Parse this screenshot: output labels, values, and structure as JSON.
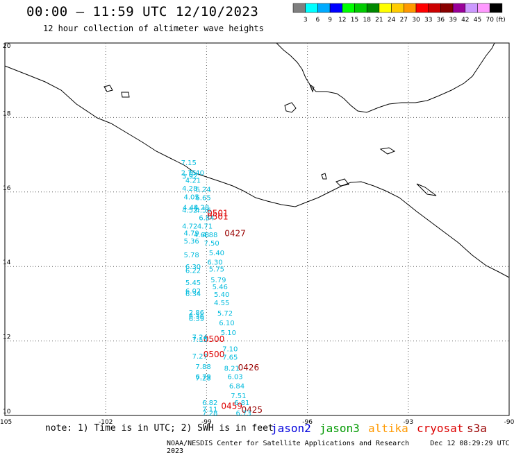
{
  "header": {
    "title": "00:00 – 11:59 UTC 12/10/2023",
    "subtitle": "12 hour collection of altimeter wave heights"
  },
  "colorbar": {
    "labels": [
      "3",
      "6",
      "9",
      "12",
      "15",
      "18",
      "21",
      "24",
      "27",
      "30",
      "33",
      "36",
      "39",
      "42",
      "45",
      "70"
    ],
    "unit": "(ft)",
    "colors": [
      "#7f7f7f",
      "#00ffff",
      "#00aaff",
      "#0000ff",
      "#00ff00",
      "#00cc00",
      "#008800",
      "#ffff00",
      "#ffcc00",
      "#ff9900",
      "#ff0000",
      "#cc0000",
      "#880000",
      "#990099",
      "#cc99ff",
      "#ff99ff",
      "#000000"
    ]
  },
  "footer": {
    "note": "note: 1) Time is in UTC; 2) SWH is in feet",
    "credit": "NOAA/NESDIS Center for Satellite Applications and Research",
    "timestamp": "Dec 12 08:29:29 UTC 2023"
  },
  "legend": [
    {
      "name": "jason2",
      "color": "#0000dd"
    },
    {
      "name": "jason3",
      "color": "#009900"
    },
    {
      "name": "altika",
      "color": "#ff9900"
    },
    {
      "name": "cryosat",
      "color": "#dd0000"
    },
    {
      "name": "s3a",
      "color": "#990000"
    }
  ],
  "chart_data": {
    "type": "scatter",
    "title": "00:00 – 11:59 UTC 12/10/2023",
    "subtitle": "12 hour collection of altimeter wave heights",
    "xlim": [
      -105,
      -90
    ],
    "ylim": [
      10,
      20
    ],
    "xticks": [
      "-105",
      "-102",
      "-99",
      "-96",
      "-93",
      "-90"
    ],
    "yticks": [
      "20",
      "18",
      "16",
      "14",
      "12",
      "10"
    ],
    "grid": true,
    "series": [
      {
        "name": "cryosat",
        "color": "#dd0000",
        "points": [
          {
            "lon": -98.67,
            "lat": 15.35,
            "label": "0501"
          },
          {
            "lon": -98.67,
            "lat": 15.26,
            "label": "0501"
          },
          {
            "lon": -98.78,
            "lat": 11.97,
            "label": "0500"
          },
          {
            "lon": -98.78,
            "lat": 11.56,
            "label": "0500"
          },
          {
            "lon": -98.25,
            "lat": 10.18,
            "label": "0459"
          }
        ]
      },
      {
        "name": "s3a",
        "color": "#990000",
        "points": [
          {
            "lon": -98.15,
            "lat": 14.81,
            "label": "0427"
          },
          {
            "lon": -97.75,
            "lat": 11.21,
            "label": "0426"
          },
          {
            "lon": -97.65,
            "lat": 10.07,
            "label": "0425"
          }
        ]
      },
      {
        "name": "swh",
        "color": "#00bbdd",
        "points": [
          {
            "lon": -99.53,
            "lat": 16.72,
            "label": "7.15"
          },
          {
            "lon": -99.53,
            "lat": 16.45,
            "label": "2.75"
          },
          {
            "lon": -99.3,
            "lat": 16.45,
            "label": "6.40"
          },
          {
            "lon": -99.5,
            "lat": 16.36,
            "label": "3.92"
          },
          {
            "lon": -99.4,
            "lat": 16.25,
            "label": "4.21"
          },
          {
            "lon": -99.5,
            "lat": 16.03,
            "label": "4.28"
          },
          {
            "lon": -99.1,
            "lat": 16.01,
            "label": "6.24"
          },
          {
            "lon": -99.45,
            "lat": 15.8,
            "label": "4.05"
          },
          {
            "lon": -99.1,
            "lat": 15.78,
            "label": "6.65"
          },
          {
            "lon": -99.48,
            "lat": 15.52,
            "label": "4.48"
          },
          {
            "lon": -99.15,
            "lat": 15.52,
            "label": "4.28"
          },
          {
            "lon": -99.5,
            "lat": 15.45,
            "label": "4.52"
          },
          {
            "lon": -99.1,
            "lat": 15.45,
            "label": "4.56"
          },
          {
            "lon": -99.0,
            "lat": 15.24,
            "label": "6.84"
          },
          {
            "lon": -99.5,
            "lat": 15.02,
            "label": "4.72"
          },
          {
            "lon": -99.05,
            "lat": 15.02,
            "label": "4.71"
          },
          {
            "lon": -99.45,
            "lat": 14.83,
            "label": "4.79"
          },
          {
            "lon": -99.15,
            "lat": 14.79,
            "label": "4.68"
          },
          {
            "lon": -98.9,
            "lat": 14.79,
            "label": "4.88"
          },
          {
            "lon": -99.45,
            "lat": 14.62,
            "label": "5.36"
          },
          {
            "lon": -98.85,
            "lat": 14.56,
            "label": "7.50"
          },
          {
            "lon": -98.7,
            "lat": 14.3,
            "label": "5.40"
          },
          {
            "lon": -99.45,
            "lat": 14.25,
            "label": "5.78"
          },
          {
            "lon": -98.75,
            "lat": 14.05,
            "label": "6.30"
          },
          {
            "lon": -99.4,
            "lat": 13.93,
            "label": "6.30"
          },
          {
            "lon": -99.4,
            "lat": 13.83,
            "label": "6.22"
          },
          {
            "lon": -98.7,
            "lat": 13.86,
            "label": "5.75"
          },
          {
            "lon": -98.65,
            "lat": 13.58,
            "label": "5.79"
          },
          {
            "lon": -99.4,
            "lat": 13.5,
            "label": "5.45"
          },
          {
            "lon": -98.6,
            "lat": 13.39,
            "label": "5.46"
          },
          {
            "lon": -99.4,
            "lat": 13.28,
            "label": "6.02"
          },
          {
            "lon": -99.4,
            "lat": 13.2,
            "label": "6.34"
          },
          {
            "lon": -98.55,
            "lat": 13.18,
            "label": "5.40"
          },
          {
            "lon": -98.55,
            "lat": 12.96,
            "label": "4.55"
          },
          {
            "lon": -99.3,
            "lat": 12.7,
            "label": "2.86"
          },
          {
            "lon": -99.3,
            "lat": 12.61,
            "label": "6.36"
          },
          {
            "lon": -99.3,
            "lat": 12.53,
            "label": "6.39"
          },
          {
            "lon": -98.45,
            "lat": 12.68,
            "label": "5.72"
          },
          {
            "lon": -98.4,
            "lat": 12.42,
            "label": "6.10"
          },
          {
            "lon": -98.35,
            "lat": 12.16,
            "label": "5.10"
          },
          {
            "lon": -99.2,
            "lat": 12.04,
            "label": "7.24"
          },
          {
            "lon": -99.2,
            "lat": 11.97,
            "label": "7.15"
          },
          {
            "lon": -98.3,
            "lat": 11.72,
            "label": "7.10"
          },
          {
            "lon": -99.2,
            "lat": 11.53,
            "label": "7.27"
          },
          {
            "lon": -98.3,
            "lat": 11.5,
            "label": "7.65"
          },
          {
            "lon": -99.1,
            "lat": 11.25,
            "label": "7.88"
          },
          {
            "lon": -98.25,
            "lat": 11.2,
            "label": "8.21"
          },
          {
            "lon": -99.1,
            "lat": 10.98,
            "label": "6.79"
          },
          {
            "lon": -99.1,
            "lat": 10.94,
            "label": "7.28"
          },
          {
            "lon": -98.15,
            "lat": 10.98,
            "label": "6.03"
          },
          {
            "lon": -98.1,
            "lat": 10.73,
            "label": "6.84"
          },
          {
            "lon": -98.05,
            "lat": 10.47,
            "label": "7.51"
          },
          {
            "lon": -98.9,
            "lat": 10.28,
            "label": "6.82"
          },
          {
            "lon": -97.95,
            "lat": 10.28,
            "label": "6.81"
          },
          {
            "lon": -98.9,
            "lat": 10.1,
            "label": "7.11"
          },
          {
            "lon": -98.9,
            "lat": 10.0,
            "label": "7.28"
          },
          {
            "lon": -97.9,
            "lat": 10.0,
            "label": "6.73"
          }
        ]
      }
    ]
  }
}
